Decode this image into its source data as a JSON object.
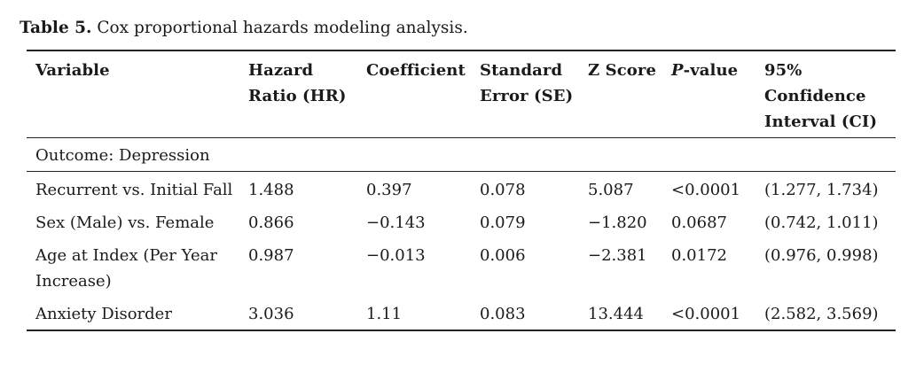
{
  "caption": {
    "label": "Table 5.",
    "text": " Cox proportional hazards modeling analysis."
  },
  "headers": {
    "variable": "Variable",
    "hr": "Hazard Ratio (HR)",
    "coef": "Coefficient",
    "se": "Standard Error (SE)",
    "z": "Z Score",
    "p_italic": "P",
    "p_rest": "-value",
    "ci": "95% Confidence Interval (CI)"
  },
  "section": "Outcome: Depression",
  "rows": [
    {
      "variable": "Recurrent vs. Initial Fall",
      "hr": "1.488",
      "coef": "0.397",
      "se": "0.078",
      "z": "5.087",
      "p": "<0.0001",
      "ci": "(1.277, 1.734)"
    },
    {
      "variable": "Sex (Male) vs. Female",
      "hr": "0.866",
      "coef": "−0.143",
      "se": "0.079",
      "z": "−1.820",
      "p": "0.0687",
      "ci": "(0.742, 1.011)"
    },
    {
      "variable": "Age at Index (Per Year Increase)",
      "hr": "0.987",
      "coef": "−0.013",
      "se": "0.006",
      "z": "−2.381",
      "p": "0.0172",
      "ci": "(0.976, 0.998)"
    },
    {
      "variable": "Anxiety Disorder",
      "hr": "3.036",
      "coef": "1.11",
      "se": "0.083",
      "z": "13.444",
      "p": "<0.0001",
      "ci": "(2.582, 3.569)"
    }
  ]
}
